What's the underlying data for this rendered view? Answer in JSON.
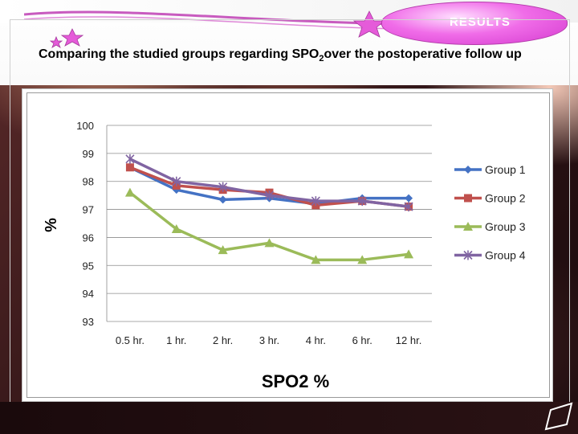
{
  "header": {
    "section_label": "RESULTS",
    "title_part1": "Comparing the studied groups regarding SPO",
    "title_sub": "2",
    "title_part2": "over the postoperative follow up"
  },
  "colors": {
    "group1": "#4472C4",
    "group2": "#C0504D",
    "group3": "#9BBB59",
    "group4": "#8064A2",
    "pill": "#f06ce8"
  },
  "chart_data": {
    "type": "line",
    "title": "",
    "xlabel": "SPO2 %",
    "ylabel": "%",
    "categories": [
      "0.5 hr.",
      "1 hr.",
      "2 hr.",
      "3 hr.",
      "4 hr.",
      "6 hr.",
      "12 hr."
    ],
    "ylim": [
      93,
      100
    ],
    "yticks": [
      100,
      99,
      98,
      97,
      96,
      95,
      94,
      93
    ],
    "grid": true,
    "legend_position": "right",
    "series": [
      {
        "name": "Group 1",
        "marker": "diamond",
        "values": [
          98.5,
          97.7,
          97.35,
          97.4,
          97.2,
          97.4,
          97.4
        ]
      },
      {
        "name": "Group 2",
        "marker": "square",
        "values": [
          98.5,
          97.85,
          97.7,
          97.6,
          97.15,
          97.3,
          97.1
        ]
      },
      {
        "name": "Group 3",
        "marker": "triangle",
        "values": [
          97.6,
          96.3,
          95.55,
          95.8,
          95.2,
          95.2,
          95.4
        ]
      },
      {
        "name": "Group 4",
        "marker": "x",
        "values": [
          98.8,
          98.0,
          97.8,
          97.5,
          97.3,
          97.3,
          97.1
        ]
      }
    ]
  }
}
